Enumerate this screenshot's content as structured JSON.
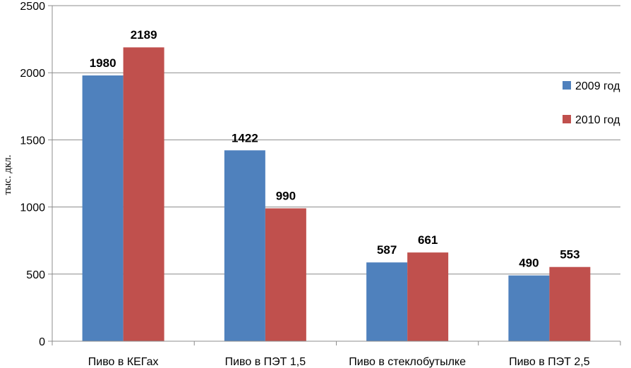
{
  "chart_data": {
    "type": "bar",
    "title": "",
    "xlabel": "",
    "ylabel": "тыс. дкл.",
    "ylim": [
      0,
      2500
    ],
    "yticks": [
      0,
      500,
      1000,
      1500,
      2000,
      2500
    ],
    "grid": true,
    "legend_position": "right",
    "categories": [
      "Пиво в КЕГах",
      "Пиво в ПЭТ 1,5",
      "Пиво в стеклобутылке",
      "Пиво в ПЭТ 2,5"
    ],
    "series": [
      {
        "name": "2009 год",
        "values": [
          1980,
          1422,
          587,
          490
        ],
        "color": "#4f81bd"
      },
      {
        "name": "2010 год",
        "values": [
          2189,
          990,
          661,
          553
        ],
        "color": "#c0504d"
      }
    ]
  }
}
